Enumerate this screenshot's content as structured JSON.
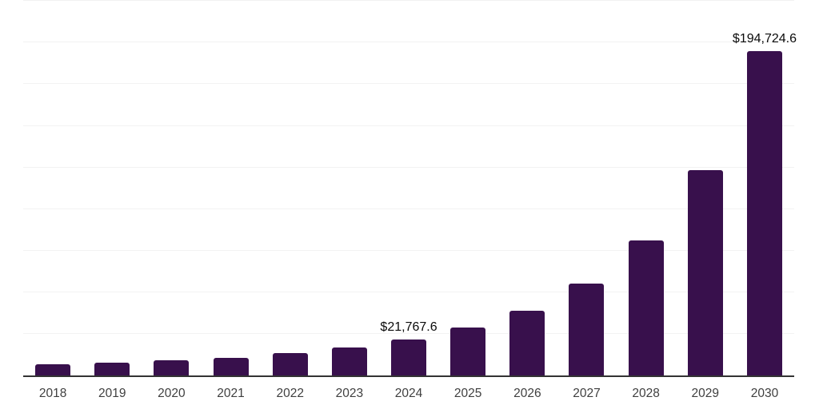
{
  "chart_data": {
    "type": "bar",
    "title": "",
    "xlabel": "",
    "ylabel": "",
    "categories": [
      "2018",
      "2019",
      "2020",
      "2021",
      "2022",
      "2023",
      "2024",
      "2025",
      "2026",
      "2027",
      "2028",
      "2029",
      "2030"
    ],
    "values": [
      6900,
      7900,
      9100,
      10800,
      13400,
      16800,
      21767.6,
      28900,
      38700,
      55300,
      81100,
      123400,
      194724.6
    ],
    "value_labels": {
      "2024": "$21,767.6",
      "2030": "$194,724.6"
    },
    "axis": {
      "y_min": 0,
      "y_max": 225600,
      "grid_step": 25000,
      "grid_max": 225000,
      "grid": true,
      "legend": "none",
      "x_ticks_visible": true,
      "y_ticks_visible": false
    },
    "colors": {
      "bar": "#38104C",
      "axis": "#333333",
      "grid": "#F2F2F2",
      "tick": "#3F3F3F",
      "value_label": "#0A0A0A",
      "background": "#FFFFFF"
    }
  }
}
